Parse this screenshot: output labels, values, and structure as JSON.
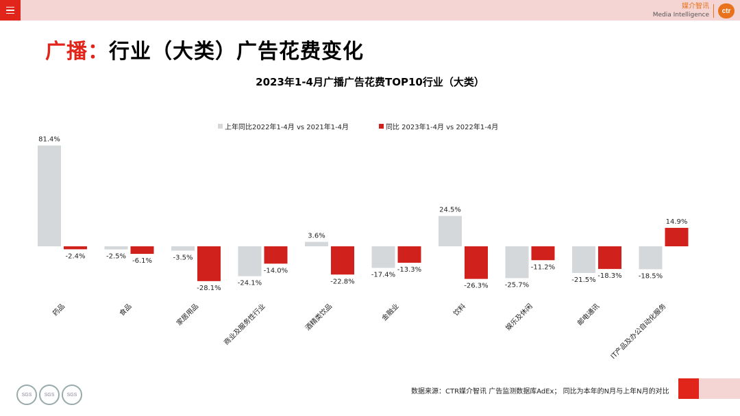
{
  "header": {
    "brand_cn": "媒介智讯",
    "brand_en": "Media Intelligence",
    "logo_text": "ctr"
  },
  "page_title_highlight": "广播：",
  "page_title_rest": "行业（大类）广告花费变化",
  "chart_data": {
    "type": "bar",
    "title": "2023年1-4月广播广告花费TOP10行业（大类）",
    "categories": [
      "药品",
      "食品",
      "家居用品",
      "商业及服务性行业",
      "酒精类饮品",
      "金融业",
      "饮料",
      "娱乐及休闲",
      "邮电通讯",
      "IT产品及办公自动化服务"
    ],
    "series": [
      {
        "name": "上年同比2022年1-4月  vs  2021年1-4月",
        "color": "#d4d8da",
        "values": [
          81.4,
          -2.5,
          -3.5,
          -24.1,
          3.6,
          -17.4,
          24.5,
          -25.7,
          -21.5,
          -18.5
        ]
      },
      {
        "name": "同比 2023年1-4月  vs  2022年1-4月",
        "color": "#d0211c",
        "values": [
          -2.4,
          -6.1,
          -28.1,
          -14.0,
          -22.8,
          -13.3,
          -26.3,
          -11.2,
          -18.3,
          14.9
        ]
      }
    ],
    "value_labels": [
      [
        "81.4%",
        "-2.5%",
        "-3.5%",
        "-24.1%",
        "3.6%",
        "-17.4%",
        "24.5%",
        "-25.7%",
        "-21.5%",
        "-18.5%"
      ],
      [
        "-2.4%",
        "-6.1%",
        "-28.1%",
        "-14.0%",
        "-22.8%",
        "-13.3%",
        "-26.3%",
        "-11.2%",
        "-18.3%",
        "14.9%"
      ]
    ],
    "legend_position": "top-center",
    "grid": false
  },
  "footer": {
    "source_note": "数据来源：CTR媒介智讯 广告监测数据库AdEx；  同比为本年的N月与上年N月的对比",
    "seal_text": "SGS"
  }
}
